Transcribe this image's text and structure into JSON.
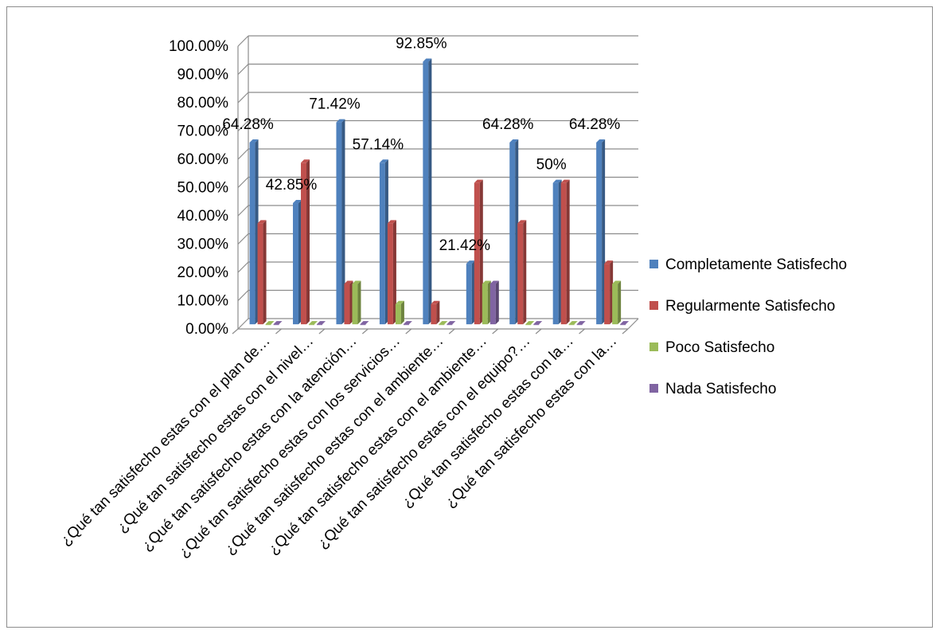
{
  "chart_data": {
    "type": "bar",
    "title": "",
    "xlabel": "",
    "ylabel": "",
    "ylim": [
      0,
      1
    ],
    "y_ticks": [
      "0.00%",
      "10.00%",
      "20.00%",
      "30.00%",
      "40.00%",
      "50.00%",
      "60.00%",
      "70.00%",
      "80.00%",
      "90.00%",
      "100.00%"
    ],
    "categories": [
      "¿Qué tan satisfecho estas con el plan de…",
      "¿Qué tan satisfecho estas con el nivel…",
      "¿Qué tan satisfecho estas con la atención…",
      "¿Qué tan satisfecho estas con los servicios…",
      "¿Qué tan satisfecho estas con el ambiente…",
      "¿Qué tan satisfecho estas con el ambiente…",
      "¿Qué tan satisfecho estas con el equipo?…",
      "¿Qué tan satisfecho estas con la…",
      "¿Qué tan satisfecho estas con la…"
    ],
    "series": [
      {
        "name": "Completamente Satisfecho",
        "color": "#4f81bd",
        "values": [
          0.6428,
          0.4285,
          0.7142,
          0.5714,
          0.9285,
          0.2142,
          0.6428,
          0.5,
          0.6428
        ],
        "labels": [
          "64.28%",
          "42.85%",
          "71.42%",
          "57.14%",
          "92.85%",
          "21.42%",
          "64.28%",
          "50%",
          "64.28%"
        ]
      },
      {
        "name": "Regularmente Satisfecho",
        "color": "#c0504d",
        "values": [
          0.3571,
          0.5714,
          0.1428,
          0.3571,
          0.0714,
          0.5,
          0.3571,
          0.5,
          0.2142
        ]
      },
      {
        "name": "Poco Satisfecho",
        "color": "#9bbb59",
        "values": [
          0,
          0,
          0.1428,
          0.0714,
          0,
          0.1428,
          0,
          0,
          0.1428
        ]
      },
      {
        "name": "Nada Satisfecho",
        "color": "#8064a2",
        "values": [
          0,
          0,
          0,
          0,
          0,
          0.1428,
          0,
          0,
          0
        ]
      }
    ],
    "grid": true,
    "legend_position": "right"
  }
}
